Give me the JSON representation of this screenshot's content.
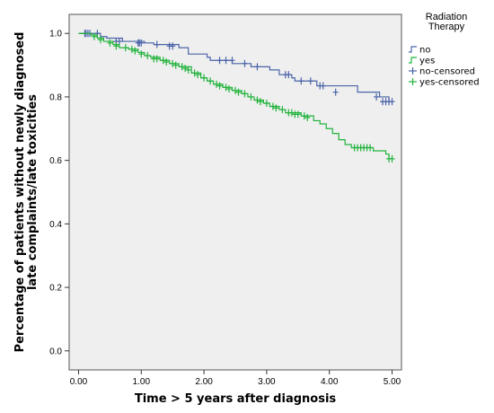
{
  "chart_data": {
    "type": "line",
    "subtype": "kaplan-meier",
    "xlabel": "Time > 5 years after diagnosis",
    "ylabel_lines": [
      "Percentage of patients without newly diagnosed",
      "late complaints/late toxicities"
    ],
    "xlim": [
      -0.15,
      5.15
    ],
    "ylim": [
      -0.06,
      1.06
    ],
    "x_ticks": [
      "0.00",
      "1.00",
      "2.00",
      "3.00",
      "4.00",
      "5.00"
    ],
    "y_ticks": [
      "0.0",
      "0.2",
      "0.4",
      "0.6",
      "0.8",
      "1.0"
    ],
    "grid": false,
    "plot_background": "#efefef",
    "legend": {
      "title_lines": [
        "Radiation",
        "Therapy"
      ],
      "placement": "top-right outside",
      "entries": [
        {
          "label": "no",
          "kind": "line",
          "color": "#4a64a8"
        },
        {
          "label": "yes",
          "kind": "line",
          "color": "#22b33c"
        },
        {
          "label": "no-censored",
          "kind": "censor",
          "color": "#4a64a8"
        },
        {
          "label": "yes-censored",
          "kind": "censor",
          "color": "#22b33c"
        }
      ]
    },
    "series": [
      {
        "name": "no",
        "color": "#4a64a8",
        "steps": [
          [
            0,
            1.0
          ],
          [
            0.35,
            0.99
          ],
          [
            0.45,
            0.985
          ],
          [
            0.7,
            0.975
          ],
          [
            1.05,
            0.97
          ],
          [
            1.2,
            0.965
          ],
          [
            1.6,
            0.955
          ],
          [
            1.75,
            0.935
          ],
          [
            2.05,
            0.925
          ],
          [
            2.1,
            0.915
          ],
          [
            2.45,
            0.905
          ],
          [
            2.75,
            0.895
          ],
          [
            3.05,
            0.885
          ],
          [
            3.2,
            0.87
          ],
          [
            3.4,
            0.86
          ],
          [
            3.45,
            0.85
          ],
          [
            3.8,
            0.835
          ],
          [
            4.45,
            0.815
          ],
          [
            4.8,
            0.8
          ],
          [
            4.95,
            0.785
          ],
          [
            5.0,
            0.785
          ]
        ],
        "censored": [
          [
            0.1,
            1.0
          ],
          [
            0.12,
            1.0
          ],
          [
            0.15,
            1.0
          ],
          [
            0.18,
            1.0
          ],
          [
            0.3,
            1.0
          ],
          [
            0.6,
            0.975
          ],
          [
            0.65,
            0.975
          ],
          [
            0.95,
            0.97
          ],
          [
            0.97,
            0.97
          ],
          [
            1.0,
            0.97
          ],
          [
            1.25,
            0.965
          ],
          [
            1.45,
            0.96
          ],
          [
            1.5,
            0.96
          ],
          [
            2.25,
            0.915
          ],
          [
            2.35,
            0.915
          ],
          [
            2.45,
            0.915
          ],
          [
            2.65,
            0.905
          ],
          [
            2.85,
            0.895
          ],
          [
            3.3,
            0.87
          ],
          [
            3.35,
            0.87
          ],
          [
            3.55,
            0.85
          ],
          [
            3.7,
            0.85
          ],
          [
            3.85,
            0.835
          ],
          [
            3.9,
            0.835
          ],
          [
            4.1,
            0.815
          ],
          [
            4.75,
            0.8
          ],
          [
            4.85,
            0.785
          ],
          [
            4.9,
            0.785
          ],
          [
            4.95,
            0.785
          ],
          [
            5.0,
            0.785
          ]
        ]
      },
      {
        "name": "yes",
        "color": "#22b33c",
        "steps": [
          [
            0,
            1.0
          ],
          [
            0.2,
            0.995
          ],
          [
            0.3,
            0.985
          ],
          [
            0.4,
            0.975
          ],
          [
            0.55,
            0.965
          ],
          [
            0.65,
            0.955
          ],
          [
            0.8,
            0.95
          ],
          [
            0.95,
            0.94
          ],
          [
            1.05,
            0.93
          ],
          [
            1.15,
            0.925
          ],
          [
            1.3,
            0.915
          ],
          [
            1.45,
            0.905
          ],
          [
            1.6,
            0.895
          ],
          [
            1.8,
            0.875
          ],
          [
            1.95,
            0.86
          ],
          [
            2.05,
            0.85
          ],
          [
            2.15,
            0.84
          ],
          [
            2.3,
            0.83
          ],
          [
            2.45,
            0.82
          ],
          [
            2.6,
            0.81
          ],
          [
            2.7,
            0.8
          ],
          [
            2.8,
            0.79
          ],
          [
            2.95,
            0.78
          ],
          [
            3.05,
            0.77
          ],
          [
            3.2,
            0.76
          ],
          [
            3.3,
            0.75
          ],
          [
            3.55,
            0.74
          ],
          [
            3.75,
            0.725
          ],
          [
            3.85,
            0.715
          ],
          [
            3.95,
            0.7
          ],
          [
            4.05,
            0.685
          ],
          [
            4.15,
            0.665
          ],
          [
            4.25,
            0.65
          ],
          [
            4.35,
            0.64
          ],
          [
            4.7,
            0.63
          ],
          [
            4.9,
            0.62
          ],
          [
            4.95,
            0.605
          ],
          [
            5.0,
            0.605
          ]
        ],
        "censored": [
          [
            0.25,
            0.99
          ],
          [
            0.35,
            0.98
          ],
          [
            0.5,
            0.97
          ],
          [
            0.6,
            0.96
          ],
          [
            0.75,
            0.955
          ],
          [
            0.85,
            0.95
          ],
          [
            0.9,
            0.945
          ],
          [
            1.0,
            0.935
          ],
          [
            1.1,
            0.93
          ],
          [
            1.2,
            0.92
          ],
          [
            1.25,
            0.92
          ],
          [
            1.35,
            0.915
          ],
          [
            1.4,
            0.91
          ],
          [
            1.5,
            0.905
          ],
          [
            1.55,
            0.9
          ],
          [
            1.65,
            0.895
          ],
          [
            1.7,
            0.89
          ],
          [
            1.75,
            0.885
          ],
          [
            1.85,
            0.875
          ],
          [
            1.9,
            0.87
          ],
          [
            2.0,
            0.86
          ],
          [
            2.1,
            0.85
          ],
          [
            2.2,
            0.84
          ],
          [
            2.25,
            0.835
          ],
          [
            2.35,
            0.83
          ],
          [
            2.4,
            0.825
          ],
          [
            2.5,
            0.82
          ],
          [
            2.55,
            0.815
          ],
          [
            2.65,
            0.81
          ],
          [
            2.75,
            0.8
          ],
          [
            2.85,
            0.79
          ],
          [
            2.9,
            0.785
          ],
          [
            3.0,
            0.78
          ],
          [
            3.1,
            0.77
          ],
          [
            3.15,
            0.765
          ],
          [
            3.25,
            0.76
          ],
          [
            3.35,
            0.75
          ],
          [
            3.4,
            0.75
          ],
          [
            3.45,
            0.745
          ],
          [
            3.5,
            0.745
          ],
          [
            3.6,
            0.74
          ],
          [
            3.65,
            0.735
          ],
          [
            4.4,
            0.64
          ],
          [
            4.45,
            0.64
          ],
          [
            4.5,
            0.64
          ],
          [
            4.55,
            0.64
          ],
          [
            4.6,
            0.64
          ],
          [
            4.65,
            0.64
          ],
          [
            4.95,
            0.605
          ],
          [
            5.0,
            0.605
          ]
        ]
      }
    ]
  }
}
